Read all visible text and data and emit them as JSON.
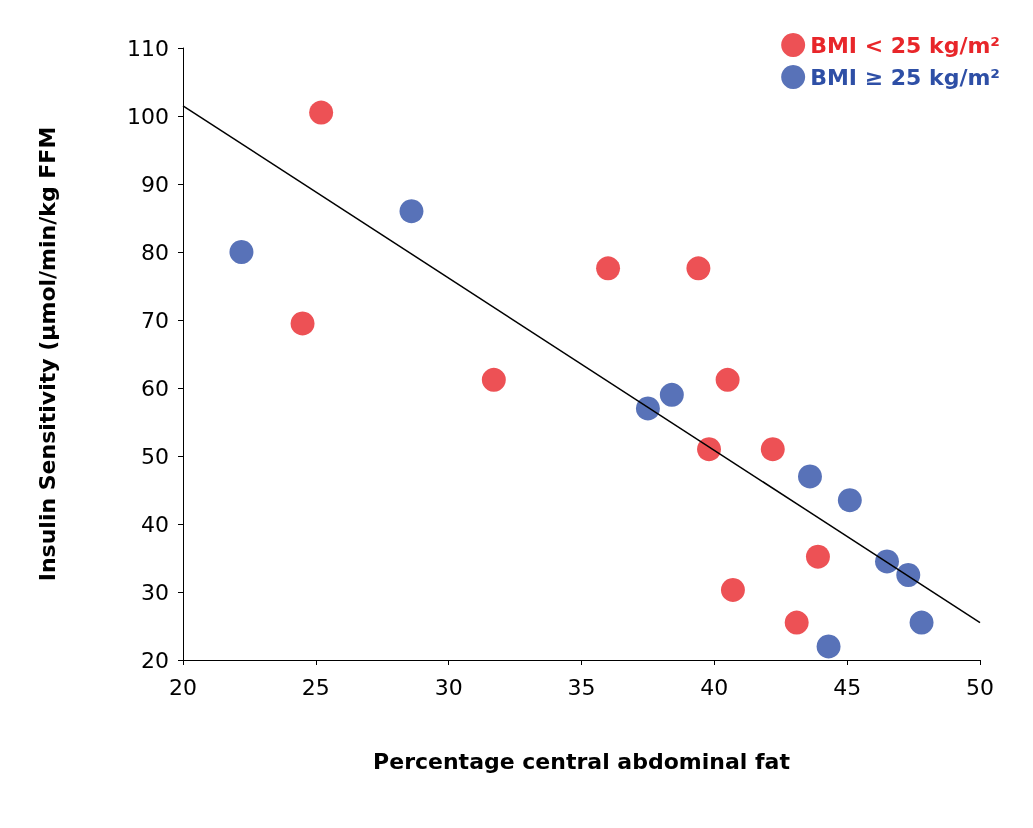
{
  "chart_data": {
    "type": "scatter",
    "xlabel": "Percentage central abdominal fat",
    "ylabel": "Insulin Sensitivity (µmol/min/kg FFM",
    "xlim": [
      20,
      50
    ],
    "xticks": [
      20,
      25,
      30,
      35,
      40,
      45,
      50
    ],
    "ylim": [
      20,
      110
    ],
    "yticks": [
      20,
      30,
      40,
      50,
      60,
      70,
      80,
      90,
      100,
      110
    ],
    "grid": false,
    "legend": "top right",
    "series": [
      {
        "name": "BMI < 25 kg/m²",
        "marker": "circle",
        "color": "#e8262a",
        "x": [
          25.2,
          24.5,
          31.7,
          36.0,
          39.4,
          40.5,
          39.8,
          42.2,
          43.9,
          40.7,
          43.1
        ],
        "values": [
          100.5,
          69.5,
          61.2,
          77.6,
          77.6,
          61.2,
          51,
          51,
          35.2,
          30.3,
          25.5
        ]
      },
      {
        "name": "BMI ≥ 25 kg/m²",
        "marker": "circle",
        "color": "#2e4fa6",
        "x": [
          22.2,
          28.6,
          37.5,
          38.4,
          43.6,
          45.1,
          46.5,
          47.3,
          47.8,
          44.3
        ],
        "values": [
          80,
          86,
          57,
          59,
          47,
          43.5,
          34.5,
          32.5,
          25.5,
          22
        ]
      },
      {
        "type": "line",
        "marker": "none",
        "color": "#000000",
        "x": [
          20,
          50
        ],
        "values": [
          101.5,
          25.5
        ]
      }
    ]
  }
}
